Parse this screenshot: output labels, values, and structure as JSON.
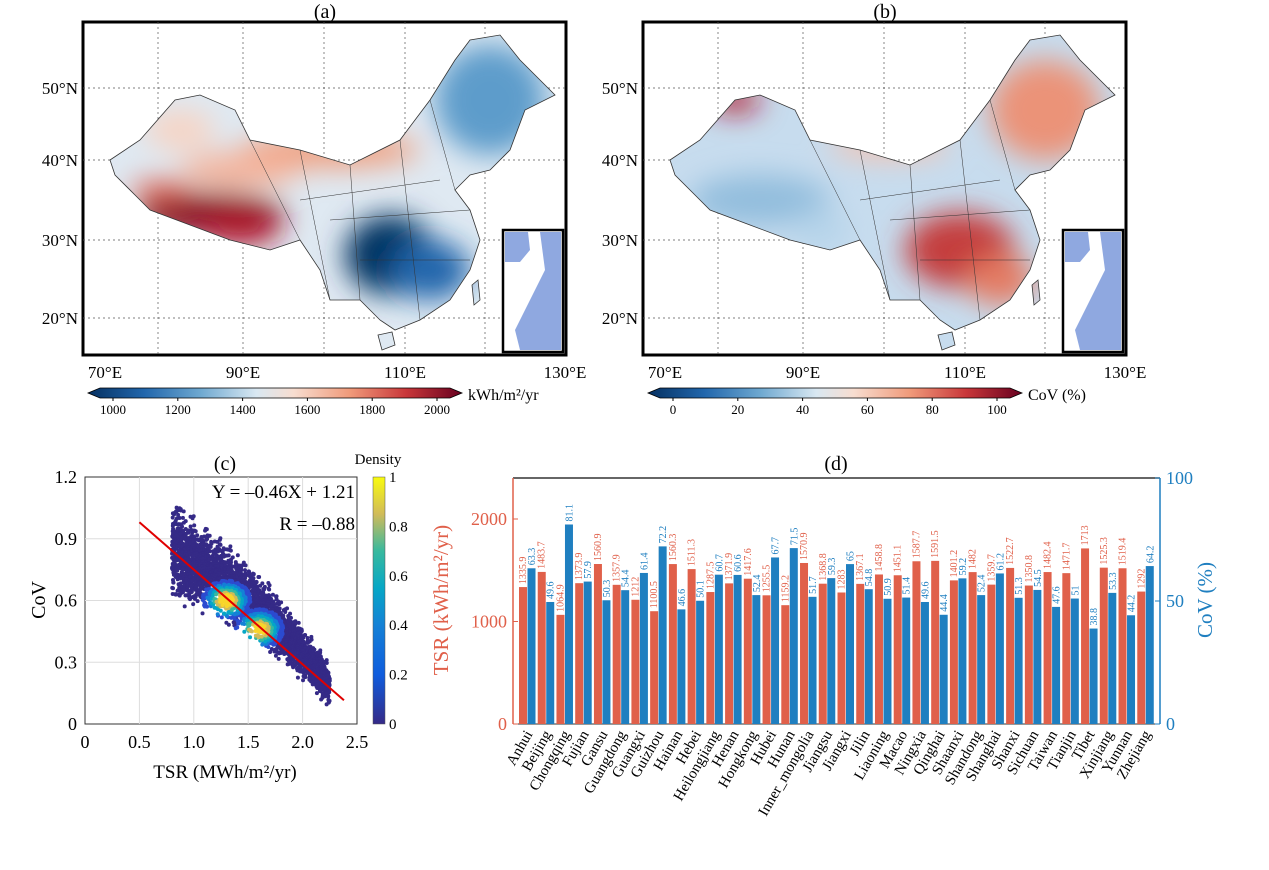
{
  "colors": {
    "tsr_red": "#e0604a",
    "cov_blue": "#1f7fc0",
    "regression_line": "#e00000",
    "inset_fill": "#8fa8e0"
  },
  "panel_a": {
    "label": "(a)",
    "lat_ticks": [
      "50°N",
      "40°N",
      "30°N",
      "20°N"
    ],
    "lon_ticks": [
      "70°E",
      "90°E",
      "110°E",
      "130°E"
    ],
    "colorbar": {
      "ticks": [
        "1000",
        "1200",
        "1400",
        "1600",
        "1800",
        "2000"
      ],
      "unit": "kWh/m²/yr",
      "colormap": "RdBu_r",
      "range": [
        1000,
        2000
      ]
    }
  },
  "panel_b": {
    "label": "(b)",
    "lat_ticks": [
      "50°N",
      "40°N",
      "30°N",
      "20°N"
    ],
    "lon_ticks": [
      "70°E",
      "90°E",
      "110°E",
      "130°E"
    ],
    "colorbar": {
      "ticks": [
        "0",
        "20",
        "40",
        "60",
        "80",
        "100"
      ],
      "unit": "CoV (%)",
      "colormap": "RdBu_r",
      "range": [
        0,
        100
      ]
    }
  },
  "chart_data": [
    {
      "panel": "(c)",
      "type": "scatter",
      "xlabel": "TSR (MWh/m²/yr)",
      "ylabel": "CoV",
      "xlim": [
        0,
        2.5
      ],
      "ylim": [
        0,
        1.2
      ],
      "xticks": [
        "0",
        "0.5",
        "1.0",
        "1.5",
        "2.0",
        "2.5"
      ],
      "yticks": [
        "0",
        "0.3",
        "0.6",
        "0.9",
        "1.2"
      ],
      "grid": true,
      "regression": {
        "equation": "Y = –0.46X + 1.21",
        "r_text": "R = –0.88",
        "slope": -0.46,
        "intercept": 1.21,
        "x_range": [
          0.5,
          2.38
        ]
      },
      "density_colorbar": {
        "title": "Density",
        "ticks": [
          "0",
          "0.2",
          "0.4",
          "0.6",
          "0.8",
          "1"
        ],
        "colormap": "parula"
      },
      "density_peaks": [
        [
          1.3,
          0.6
        ],
        [
          1.6,
          0.46
        ]
      ]
    },
    {
      "panel": "(d)",
      "type": "bar",
      "categories": [
        "Anhui",
        "Beijing",
        "Chongqing",
        "Fujian",
        "Gansu",
        "Guangdong",
        "Guangxi",
        "Guizhou",
        "Hainan",
        "Hebei",
        "Heilongjiang",
        "Henan",
        "Hongkong",
        "Hubei",
        "Hunan",
        "Inner_mongolia",
        "Jiangsu",
        "Jiangxi",
        "Jilin",
        "Liaoning",
        "Macao",
        "Ningxia",
        "Qinghai",
        "Shaanxi",
        "Shandong",
        "Shanghai",
        "Shanxi",
        "Sichuan",
        "Taiwan",
        "Tianjin",
        "Tibet",
        "Xinjiang",
        "Yunnan",
        "Zhejiang"
      ],
      "series": [
        {
          "axis": "left",
          "values": [
            1335.9,
            1483.7,
            1064.9,
            1373.9,
            1560.9,
            1357.9,
            1212,
            1100.5,
            1560.3,
            1511.3,
            1287.5,
            1371.9,
            1417.6,
            1255.5,
            1159.2,
            1570.9,
            1368.8,
            1283,
            1367.1,
            1458.8,
            1451.1,
            1587.7,
            1591.5,
            1401.2,
            1482,
            1359.7,
            1522.7,
            1350.8,
            1482.4,
            1471.7,
            1713,
            1525.3,
            1519.4,
            1292
          ]
        },
        {
          "axis": "right",
          "values": [
            63.3,
            49.6,
            81.1,
            57.9,
            50.3,
            54.4,
            61.4,
            72.2,
            46.6,
            50.1,
            60.7,
            60.6,
            52.4,
            67.7,
            71.5,
            51.7,
            59.3,
            65,
            54.8,
            50.9,
            51.4,
            49.6,
            44.4,
            59.2,
            52.4,
            61.2,
            51.3,
            54.5,
            47.6,
            51,
            38.8,
            53.3,
            44.2,
            64.2
          ]
        }
      ],
      "ylabel_left": "TSR (kWh/m²/yr)",
      "ylabel_right": "CoV (%)",
      "ylim_left": [
        0,
        2400
      ],
      "ylim_right": [
        0,
        100
      ],
      "yticks_left": [
        "0",
        "1000",
        "2000"
      ],
      "yticks_right": [
        "0",
        "50",
        "100"
      ]
    }
  ]
}
